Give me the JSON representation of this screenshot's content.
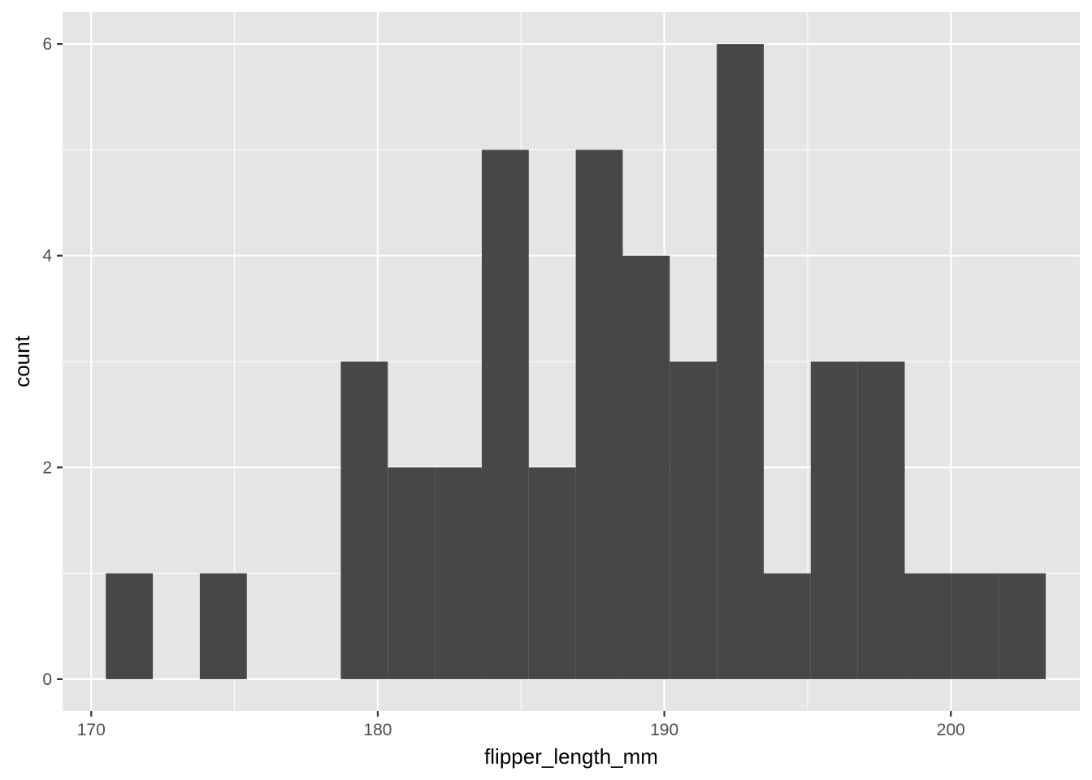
{
  "chart_data": {
    "type": "bar",
    "subtype": "histogram",
    "title": "",
    "xlabel": "flipper_length_mm",
    "ylabel": "count",
    "xlim": [
      169.0,
      204.5
    ],
    "ylim": [
      -0.3,
      6.3
    ],
    "x_ticks": [
      170,
      180,
      190,
      200
    ],
    "x_tick_labels": [
      "170",
      "180",
      "190",
      "200"
    ],
    "y_ticks": [
      0,
      2,
      4,
      6
    ],
    "y_tick_labels": [
      "0",
      "2",
      "4",
      "6"
    ],
    "bin_width": 1.64,
    "bins": [
      {
        "x0": 170.51,
        "x1": 172.15,
        "count": 1
      },
      {
        "x0": 172.15,
        "x1": 173.79,
        "count": 0
      },
      {
        "x0": 173.79,
        "x1": 175.43,
        "count": 1
      },
      {
        "x0": 175.43,
        "x1": 177.07,
        "count": 0
      },
      {
        "x0": 177.07,
        "x1": 178.71,
        "count": 0
      },
      {
        "x0": 178.71,
        "x1": 180.35,
        "count": 3
      },
      {
        "x0": 180.35,
        "x1": 181.99,
        "count": 2
      },
      {
        "x0": 181.99,
        "x1": 183.63,
        "count": 2
      },
      {
        "x0": 183.63,
        "x1": 185.27,
        "count": 5
      },
      {
        "x0": 185.27,
        "x1": 186.91,
        "count": 2
      },
      {
        "x0": 186.91,
        "x1": 188.55,
        "count": 5
      },
      {
        "x0": 188.55,
        "x1": 190.19,
        "count": 4
      },
      {
        "x0": 190.19,
        "x1": 191.83,
        "count": 3
      },
      {
        "x0": 191.83,
        "x1": 193.47,
        "count": 6
      },
      {
        "x0": 193.47,
        "x1": 195.11,
        "count": 1
      },
      {
        "x0": 195.11,
        "x1": 196.75,
        "count": 3
      },
      {
        "x0": 196.75,
        "x1": 198.39,
        "count": 3
      },
      {
        "x0": 198.39,
        "x1": 200.03,
        "count": 1
      },
      {
        "x0": 200.03,
        "x1": 201.67,
        "count": 1
      },
      {
        "x0": 201.67,
        "x1": 203.31,
        "count": 1
      }
    ],
    "grid": true,
    "legend": "none",
    "colors": {
      "panel_background": "#e5e5e5",
      "grid": "#ffffff",
      "bar_fill": "#474747",
      "tick_label": "#4d4d4d",
      "axis_title": "#000000"
    }
  }
}
